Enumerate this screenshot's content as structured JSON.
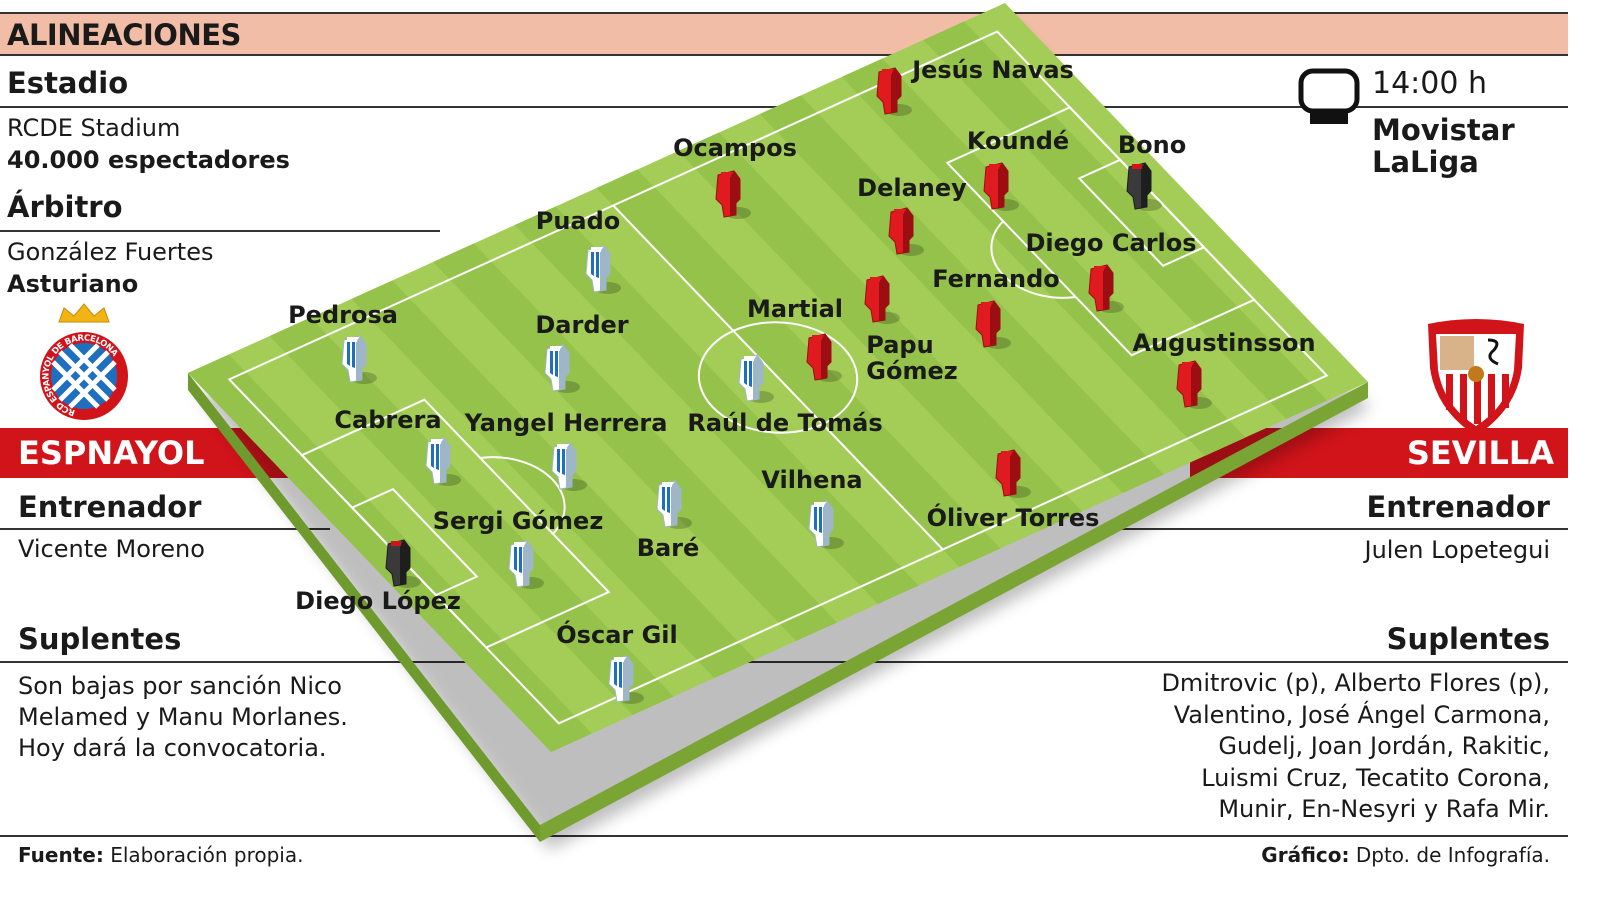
{
  "header": {
    "title": "ALINEACIONES"
  },
  "match": {
    "stadium_label": "Estadio",
    "stadium": "RCDE Stadium",
    "attendance": "40.000 espectadores",
    "referee_label": "Árbitro",
    "referee": "González Fuertes",
    "referee_region": "Asturiano",
    "time": "14:00 h",
    "tv_line1": "Movistar",
    "tv_line2": "LaLiga",
    "tv_icon": "tv-icon"
  },
  "home": {
    "name": "ESPNAYOL",
    "coach_label": "Entrenador",
    "coach": "Vicente Moreno",
    "subs_label": "Suplentes",
    "subs_lines": [
      "Son bajas por sanción Nico",
      "Melamed y Manu Morlanes.",
      "Hoy dará la convocatoria."
    ],
    "crest_text": "RCD ESPANYOL DE BARCELONA",
    "color": "#1e6fc0",
    "players": [
      "Diego López",
      "Óscar Gil",
      "Sergi Gómez",
      "Cabrera",
      "Pedrosa",
      "Yangel Herrera",
      "Baré",
      "Darder",
      "Puado",
      "Vilhena",
      "Raúl de Tomás"
    ]
  },
  "away": {
    "name": "SEVILLA",
    "coach_label": "Entrenador",
    "coach": "Julen Lopetegui",
    "subs_label": "Suplentes",
    "subs_lines": [
      "Dmitrovic (p), Alberto Flores (p),",
      "Valentino, José Ángel Carmona,",
      "Gudelj, Joan Jordán, Rakitic,",
      "Luismi Cruz, Tecatito Corona,",
      "Munir, En-Nesyri y Rafa Mir."
    ],
    "color": "#d0141a",
    "players": [
      "Bono",
      "Jesús Navas",
      "Koundé",
      "Diego Carlos",
      "Augustinsson",
      "Delaney",
      "Fernando",
      "Ocampos",
      "Papu\nGómez",
      "Óliver Torres",
      "Martial"
    ]
  },
  "footer": {
    "source_label": "Fuente:",
    "source": "Elaboración propia.",
    "graphic_label": "Gráfico:",
    "graphic": "Dpto. de Infografía."
  },
  "colors": {
    "header_band": "#f1bda6",
    "team_bar": "#d0141a",
    "pitch": "#9cc94f",
    "goalkeeper": "#333333"
  }
}
